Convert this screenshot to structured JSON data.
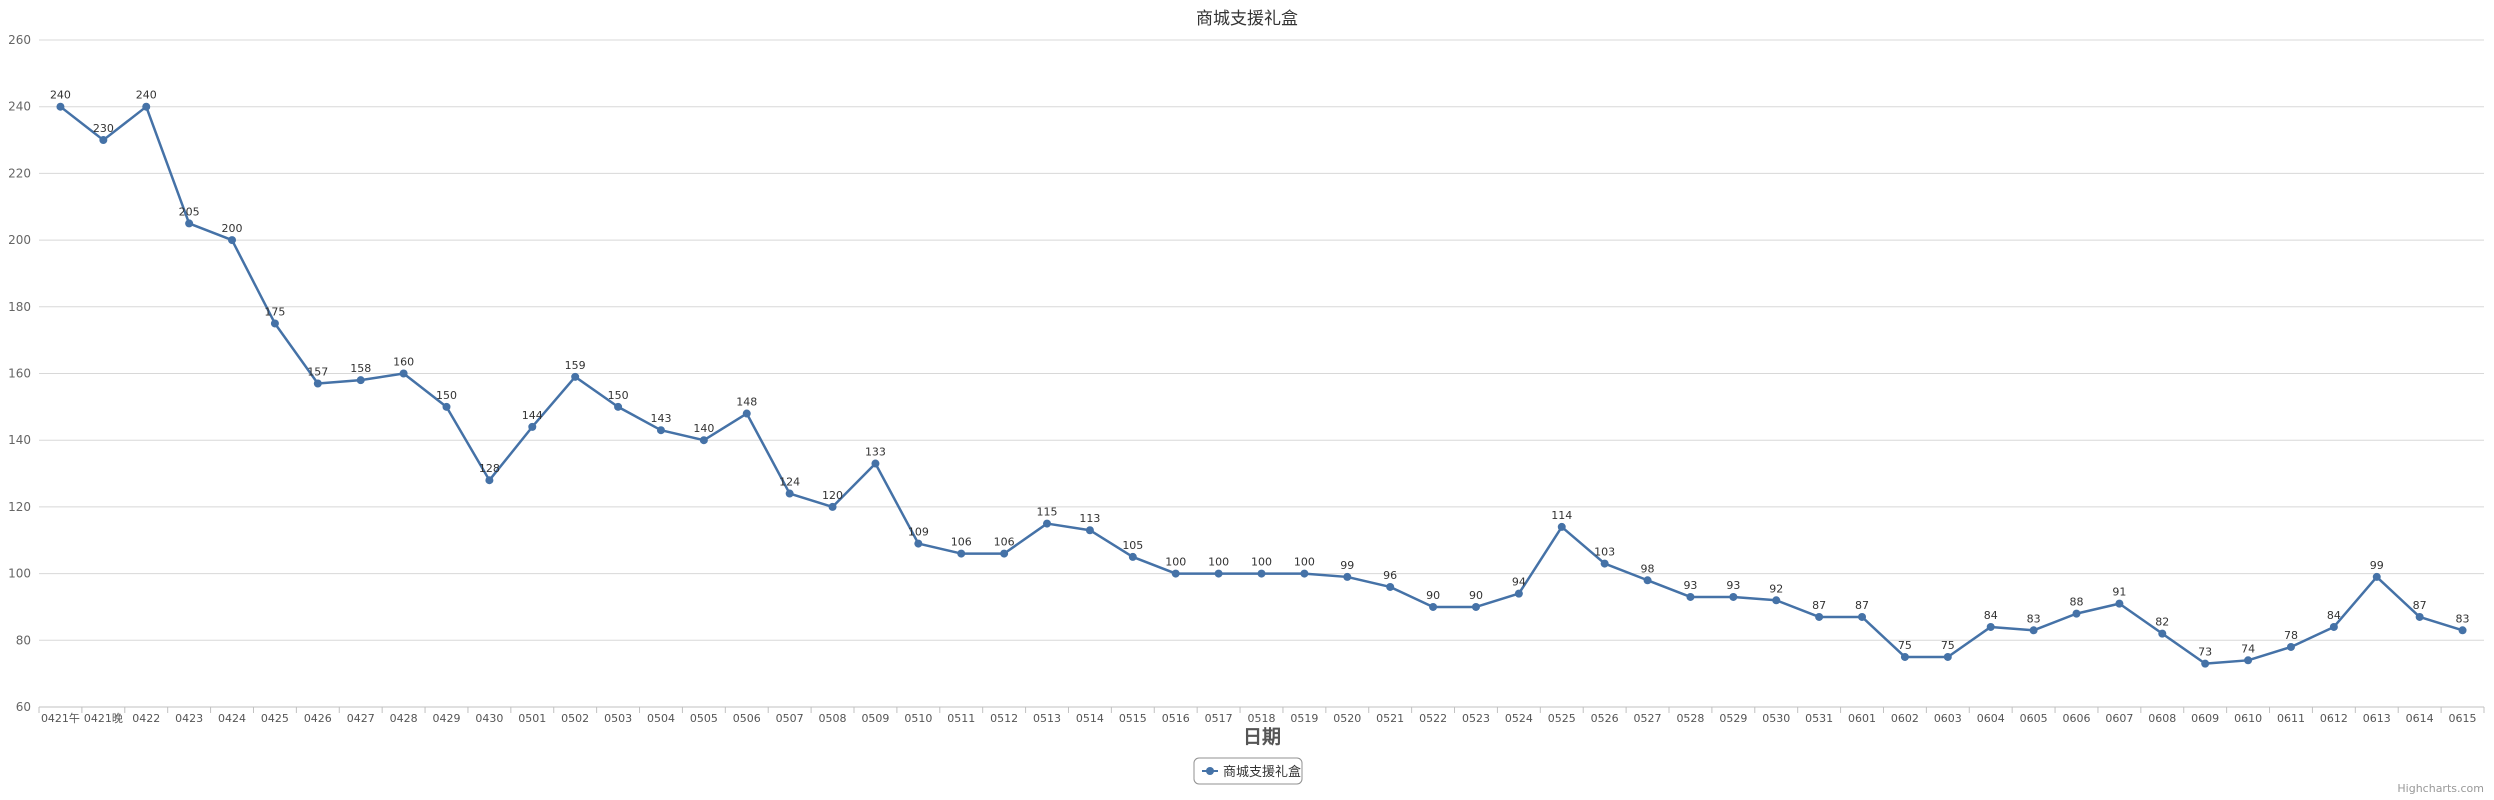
{
  "chart_data": {
    "type": "line",
    "title": "商城支援礼盒",
    "xlabel": "日期",
    "ylabel": "",
    "ylim": [
      60,
      260
    ],
    "yticks": [
      60,
      80,
      100,
      120,
      140,
      160,
      180,
      200,
      220,
      240,
      260
    ],
    "grid": true,
    "legend_position": "bottom-center",
    "colors": {
      "series": "#4572A7",
      "grid": "#d8d8d8",
      "axis": "#c0c0c0"
    },
    "categories": [
      "0421午",
      "0421晚",
      "0422",
      "0423",
      "0424",
      "0425",
      "0426",
      "0427",
      "0428",
      "0429",
      "0430",
      "0501",
      "0502",
      "0503",
      "0504",
      "0505",
      "0506",
      "0507",
      "0508",
      "0509",
      "0510",
      "0511",
      "0512",
      "0513",
      "0514",
      "0515",
      "0516",
      "0517",
      "0518",
      "0519",
      "0520",
      "0521",
      "0522",
      "0523",
      "0524",
      "0525",
      "0526",
      "0527",
      "0528",
      "0529",
      "0530",
      "0531",
      "0601",
      "0602",
      "0603",
      "0604",
      "0605",
      "0606",
      "0607",
      "0608",
      "0609",
      "0610",
      "0611",
      "0612",
      "0613",
      "0614",
      "0615"
    ],
    "series": [
      {
        "name": "商城支援礼盒",
        "values": [
          240,
          230,
          240,
          205,
          200,
          175,
          157,
          158,
          160,
          150,
          128,
          144,
          159,
          150,
          143,
          140,
          148,
          124,
          120,
          133,
          109,
          106,
          106,
          115,
          113,
          105,
          100,
          100,
          100,
          100,
          99,
          96,
          90,
          90,
          94,
          114,
          103,
          98,
          93,
          93,
          92,
          87,
          87,
          75,
          75,
          84,
          83,
          88,
          91,
          82,
          73,
          74,
          78,
          84,
          99,
          87,
          83
        ]
      }
    ]
  },
  "credit": "Highcharts.com"
}
